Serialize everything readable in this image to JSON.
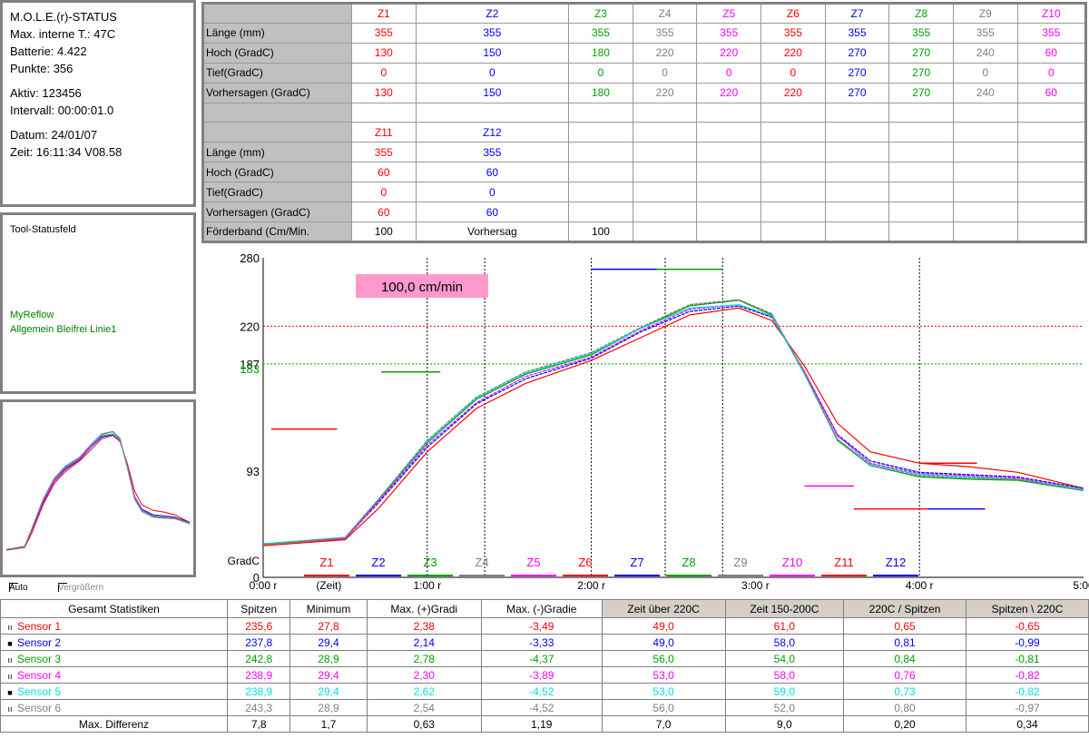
{
  "status": {
    "title": "M.O.L.E.(r)-STATUS",
    "max_temp": "Max. interne T.: 47C",
    "battery": "Batterie: 4.422",
    "points": "Punkte: 356",
    "active": "Aktiv: 123456",
    "interval": "Intervall: 00:00:01.0",
    "date": "Datum: 24/01/07",
    "time": "Zeit: 16:11:34  V08.58"
  },
  "tool": {
    "title": "Tool-Statusfeld",
    "line1": "MyReflow",
    "line2": "Allgemein Bleifrei Linie1"
  },
  "checkboxes": {
    "auto": "Auto",
    "zoom": "Vergrößern"
  },
  "zones": {
    "row_labels": [
      "Länge (mm)",
      "Hoch (GradC)",
      "Tief(GradC)",
      "Vorhersagen (GradC)"
    ],
    "top": [
      {
        "name": "Z1",
        "color": "#ff0000",
        "len": "355",
        "high": "130",
        "low": "0",
        "pred": "130"
      },
      {
        "name": "Z2",
        "color": "#0000ff",
        "len": "355",
        "high": "150",
        "low": "0",
        "pred": "150"
      },
      {
        "name": "Z3",
        "color": "#00a000",
        "len": "355",
        "high": "180",
        "low": "0",
        "pred": "180"
      },
      {
        "name": "Z4",
        "color": "#808080",
        "len": "355",
        "high": "220",
        "low": "0",
        "pred": "220"
      },
      {
        "name": "Z5",
        "color": "#ff00ff",
        "len": "355",
        "high": "220",
        "low": "0",
        "pred": "220"
      },
      {
        "name": "Z6",
        "color": "#ff0000",
        "len": "355",
        "high": "220",
        "low": "0",
        "pred": "220"
      },
      {
        "name": "Z7",
        "color": "#0000ff",
        "len": "355",
        "high": "270",
        "low": "270",
        "pred": "270"
      },
      {
        "name": "Z8",
        "color": "#00a000",
        "len": "355",
        "high": "270",
        "low": "270",
        "pred": "270"
      },
      {
        "name": "Z9",
        "color": "#808080",
        "len": "355",
        "high": "240",
        "low": "0",
        "pred": "240"
      },
      {
        "name": "Z10",
        "color": "#ff00ff",
        "len": "355",
        "high": "60",
        "low": "0",
        "pred": "60"
      }
    ],
    "bottom": [
      {
        "name": "Z11",
        "color": "#ff0000",
        "len": "355",
        "high": "60",
        "low": "0",
        "pred": "60"
      },
      {
        "name": "Z12",
        "color": "#0000ff",
        "len": "355",
        "high": "60",
        "low": "0",
        "pred": "60"
      }
    ],
    "conveyor_label": "Förderband (Cm/Min.",
    "conveyor_value": "100",
    "predict_label": "Vorhersag",
    "predict_value": "100"
  },
  "chart_data": {
    "type": "line",
    "speed_label": "100,0 cm/min",
    "ylabel": "GradC",
    "xlabel": "(Zeit)",
    "ylim": [
      0,
      280
    ],
    "xlim_min": [
      0,
      5
    ],
    "y_ticks": [
      {
        "v": 280,
        "t": "280"
      },
      {
        "v": 220,
        "t": "220"
      },
      {
        "v": 187,
        "t": "187"
      },
      {
        "v": 183,
        "t": "183",
        "color": "#00a000"
      },
      {
        "v": 93,
        "t": "93"
      },
      {
        "v": 0,
        "t": "0"
      }
    ],
    "x_ticks": [
      "0:00 r",
      "1:00 r",
      "2:00 r",
      "3:00 r",
      "4:00 r",
      "5:00"
    ],
    "hlines": [
      {
        "v": 220,
        "color": "#ff0000"
      },
      {
        "v": 187,
        "color": "#00a000"
      }
    ],
    "zone_labels": [
      "Z1",
      "Z2",
      "Z3",
      "Z4",
      "Z5",
      "Z6",
      "Z7",
      "Z8",
      "Z9",
      "Z10",
      "Z11",
      "Z12"
    ],
    "zone_colors": [
      "#ff0000",
      "#0000ff",
      "#00a000",
      "#808080",
      "#ff00ff",
      "#ff0000",
      "#0000ff",
      "#00a000",
      "#808080",
      "#ff00ff",
      "#ff0000",
      "#0000ff"
    ],
    "zone_boundaries_min": [
      1.0,
      1.35,
      2.0,
      2.45,
      2.8,
      4.0
    ],
    "setpoints": [
      {
        "x0": 0.05,
        "x1": 0.45,
        "v": 130,
        "color": "#ff0000"
      },
      {
        "x0": 0.72,
        "x1": 1.08,
        "v": 180,
        "color": "#00a000"
      },
      {
        "x0": 2.0,
        "x1": 2.4,
        "v": 270,
        "color": "#0000ff"
      },
      {
        "x0": 2.4,
        "x1": 2.8,
        "v": 270,
        "color": "#00a000"
      },
      {
        "x0": 3.3,
        "x1": 3.6,
        "v": 80,
        "color": "#ff00ff"
      },
      {
        "x0": 3.6,
        "x1": 4.05,
        "v": 60,
        "color": "#ff0000"
      },
      {
        "x0": 4.05,
        "x1": 4.4,
        "v": 60,
        "color": "#0000ff"
      },
      {
        "x0": 4.0,
        "x1": 4.35,
        "v": 100,
        "color": "#ff0000"
      }
    ],
    "series": [
      {
        "name": "Sensor 1",
        "color": "#ff0000",
        "x": [
          0,
          0.5,
          0.7,
          1.0,
          1.3,
          1.6,
          2.0,
          2.3,
          2.6,
          2.9,
          3.1,
          3.3,
          3.5,
          3.7,
          4.0,
          4.3,
          4.6,
          5.0
        ],
        "y": [
          27.8,
          33,
          60,
          110,
          148,
          170,
          190,
          210,
          230,
          236,
          225,
          185,
          135,
          110,
          100,
          97,
          92,
          78
        ]
      },
      {
        "name": "Sensor 2",
        "color": "#0000ff",
        "x": [
          0,
          0.5,
          0.7,
          1.0,
          1.3,
          1.6,
          2.0,
          2.3,
          2.6,
          2.9,
          3.1,
          3.3,
          3.5,
          3.7,
          4.0,
          4.3,
          4.6,
          5.0
        ],
        "y": [
          29.4,
          34,
          65,
          114,
          152,
          174,
          192,
          215,
          233,
          237.8,
          228,
          180,
          125,
          102,
          92,
          90,
          88,
          78
        ]
      },
      {
        "name": "Sensor 3",
        "color": "#00a000",
        "x": [
          0,
          0.5,
          0.7,
          1.0,
          1.3,
          1.6,
          2.0,
          2.3,
          2.6,
          2.9,
          3.1,
          3.3,
          3.5,
          3.7,
          4.0,
          4.3,
          4.6,
          5.0
        ],
        "y": [
          28.9,
          34,
          67,
          118,
          156,
          178,
          195,
          218,
          238,
          242.8,
          230,
          178,
          120,
          98,
          88,
          86,
          85,
          76
        ]
      },
      {
        "name": "Sensor 4",
        "color": "#ff00ff",
        "x": [
          0,
          0.5,
          0.7,
          1.0,
          1.3,
          1.6,
          2.0,
          2.3,
          2.6,
          2.9,
          3.1,
          3.3,
          3.5,
          3.7,
          4.0,
          4.3,
          4.6,
          5.0
        ],
        "y": [
          29.4,
          34,
          66,
          116,
          153,
          176,
          193,
          216,
          235,
          238.9,
          229,
          180,
          124,
          100,
          91,
          89,
          87,
          77
        ]
      },
      {
        "name": "Sensor 5",
        "color": "#00e0e0",
        "x": [
          0,
          0.5,
          0.7,
          1.0,
          1.3,
          1.6,
          2.0,
          2.3,
          2.6,
          2.9,
          3.1,
          3.3,
          3.5,
          3.7,
          4.0,
          4.3,
          4.6,
          5.0
        ],
        "y": [
          29.4,
          35,
          68,
          119,
          157,
          179,
          196,
          218,
          236,
          238.9,
          229,
          178,
          121,
          99,
          90,
          88,
          86,
          77
        ]
      },
      {
        "name": "Sensor 6",
        "color": "#808080",
        "x": [
          0,
          0.5,
          0.7,
          1.0,
          1.3,
          1.6,
          2.0,
          2.3,
          2.6,
          2.9,
          3.1,
          3.3,
          3.5,
          3.7,
          4.0,
          4.3,
          4.6,
          5.0
        ],
        "y": [
          28.9,
          35,
          68,
          120,
          158,
          180,
          197,
          219,
          239,
          243.3,
          231,
          179,
          121,
          98,
          89,
          87,
          86,
          76
        ]
      }
    ]
  },
  "stats": {
    "headers": [
      "Gesamt Statistiken",
      "Spitzen",
      "Minimum",
      "Max. (+)Gradi",
      "Max. (-)Gradie",
      "Zeit über 220C",
      "Zeit 150-200C",
      "220C / Spitzen",
      "Spitzen \\ 220C"
    ],
    "rows": [
      {
        "mark": "ıı",
        "name": "Sensor 1",
        "color": "#ff0000",
        "vals": [
          "235,6",
          "27,8",
          "2,38",
          "-3,49",
          "49,0",
          "61,0",
          "0,65",
          "-0,65"
        ]
      },
      {
        "mark": "■",
        "name": "Sensor 2",
        "color": "#0000ff",
        "vals": [
          "237,8",
          "29,4",
          "2,14",
          "-3,33",
          "49,0",
          "58,0",
          "0,81",
          "-0,99"
        ]
      },
      {
        "mark": "ıı",
        "name": "Sensor 3",
        "color": "#00a000",
        "vals": [
          "242,8",
          "28,9",
          "2,78",
          "-4,37",
          "56,0",
          "54,0",
          "0,84",
          "-0,81"
        ]
      },
      {
        "mark": "ıı",
        "name": "Sensor 4",
        "color": "#ff00ff",
        "vals": [
          "238,9",
          "29,4",
          "2,30",
          "-3,89",
          "53,0",
          "58,0",
          "0,76",
          "-0,82"
        ]
      },
      {
        "mark": "■",
        "name": "Sensor 5",
        "color": "#00e0e0",
        "vals": [
          "238,9",
          "29,4",
          "2,62",
          "-4,52",
          "53,0",
          "59,0",
          "0,73",
          "-0,82"
        ]
      },
      {
        "mark": "ıı",
        "name": "Sensor 6",
        "color": "#808080",
        "vals": [
          "243,3",
          "28,9",
          "2,54",
          "-4,52",
          "56,0",
          "52,0",
          "0,80",
          "-0,97"
        ]
      }
    ],
    "diff": {
      "name": "Max. Differenz",
      "vals": [
        "7,8",
        "1,7",
        "0,63",
        "1,19",
        "7,0",
        "9,0",
        "0,20",
        "0,34"
      ]
    }
  }
}
